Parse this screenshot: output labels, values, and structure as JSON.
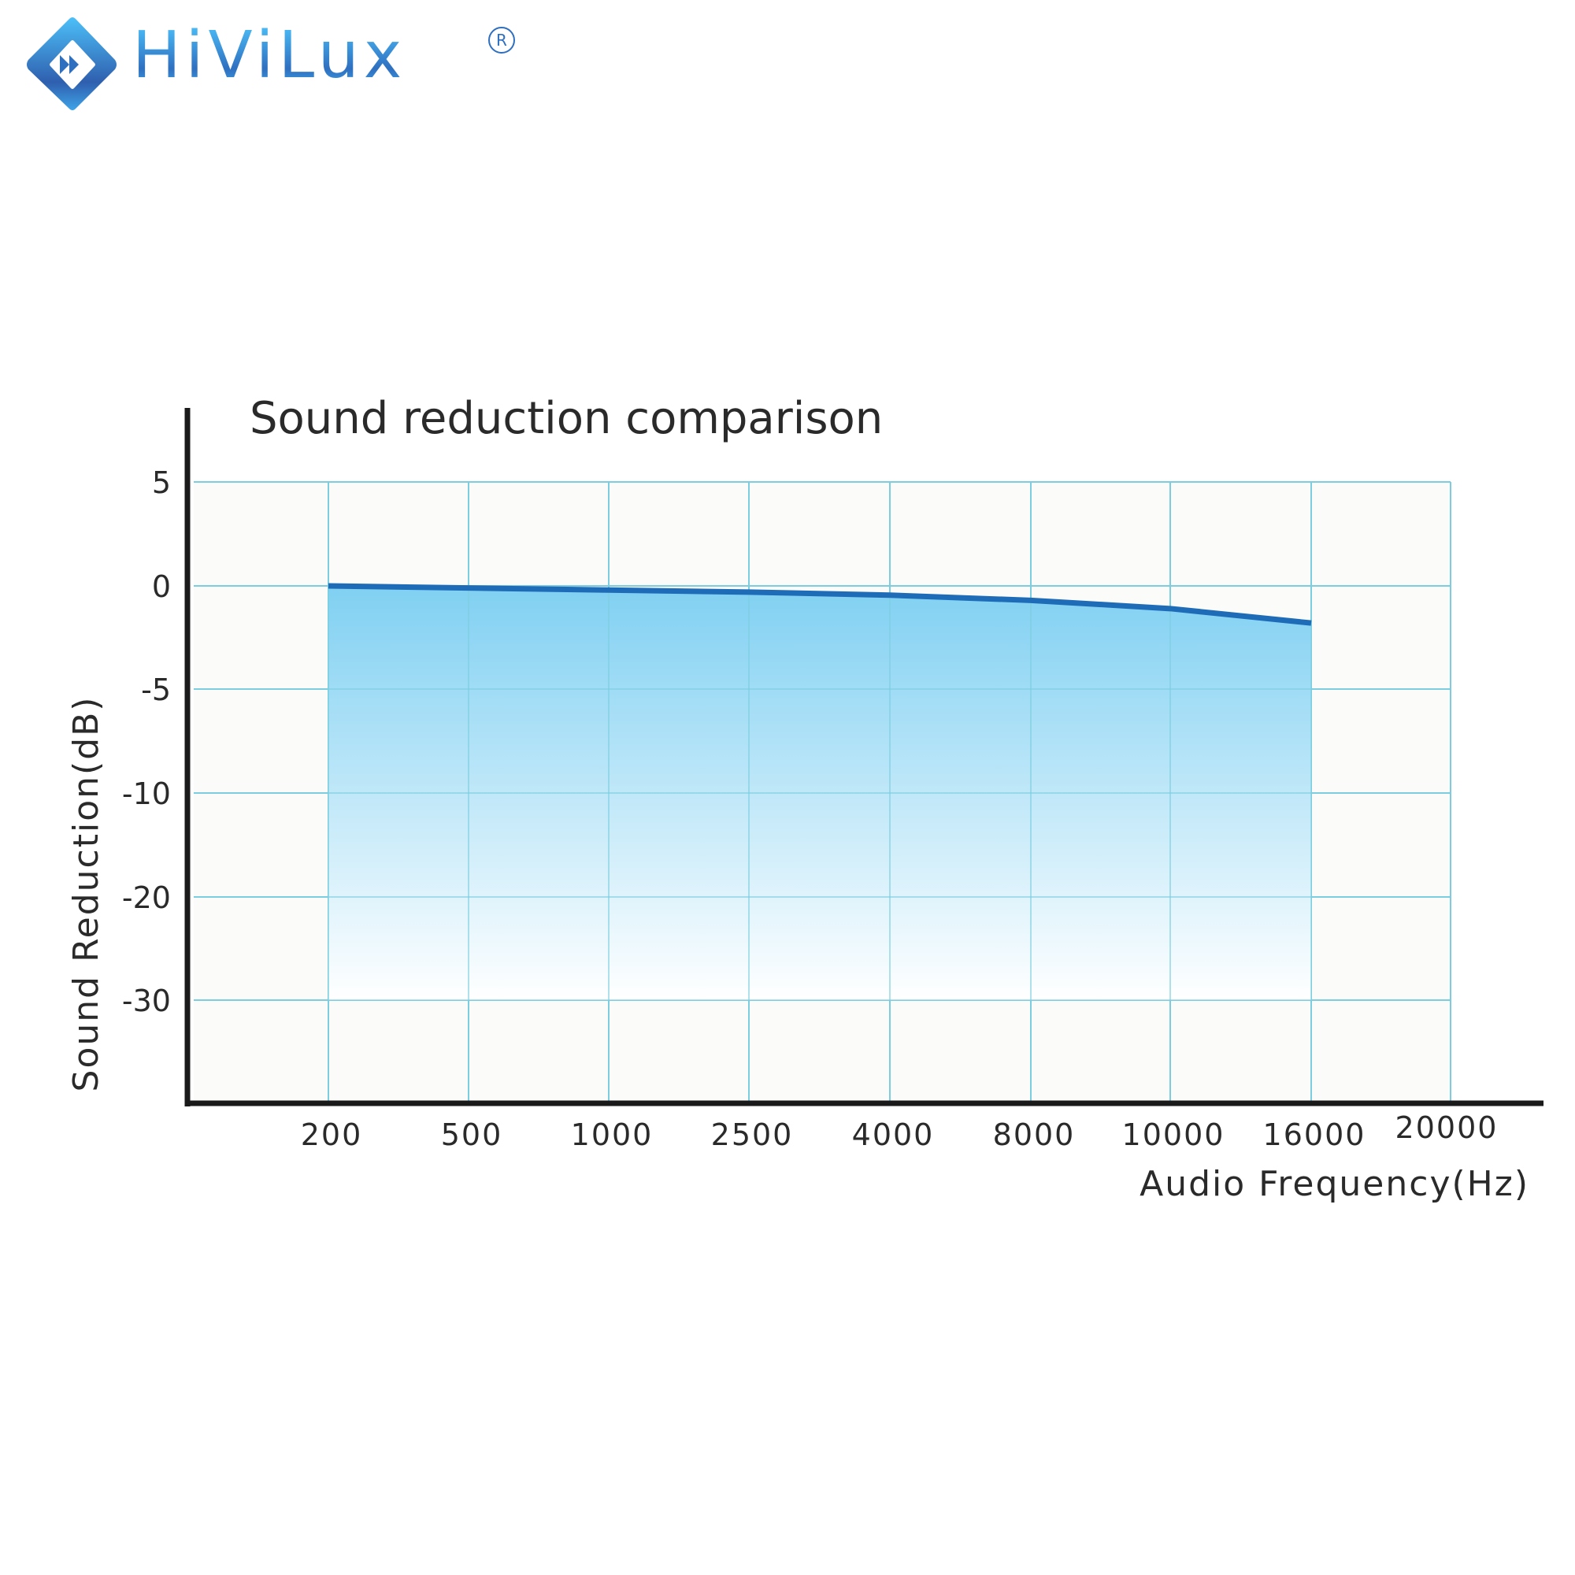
{
  "brand": {
    "name": "HiViLux",
    "registered": "R",
    "colors": {
      "light": "#4cc0f8",
      "dark": "#2f6fc0"
    }
  },
  "chart_data": {
    "type": "area",
    "title": "Sound reduction comparison",
    "xlabel": "Audio Frequency(Hz)",
    "ylabel": "Sound Reduction(dB)",
    "x_categories": [
      "200",
      "500",
      "1000",
      "2500",
      "4000",
      "8000",
      "10000",
      "16000",
      "20000"
    ],
    "y_ticks": [
      5,
      0,
      -5,
      -10,
      -20,
      -30
    ],
    "y_tick_labels": [
      "5",
      "0",
      "-5",
      "-10",
      "-20",
      "-30"
    ],
    "grid": true,
    "series": [
      {
        "name": "Sound reduction",
        "x": [
          "200",
          "500",
          "1000",
          "2500",
          "4000",
          "8000",
          "10000",
          "16000"
        ],
        "values": [
          0,
          -0.1,
          -0.2,
          -0.3,
          -0.45,
          -0.7,
          -1.1,
          -1.8
        ]
      }
    ],
    "colors": {
      "line": "#1e6cb8",
      "fill_top": "#80d0f2",
      "grid": "#7ccde0",
      "axis": "#1a1a1a",
      "plot_bg": "#fbfbfa"
    }
  }
}
